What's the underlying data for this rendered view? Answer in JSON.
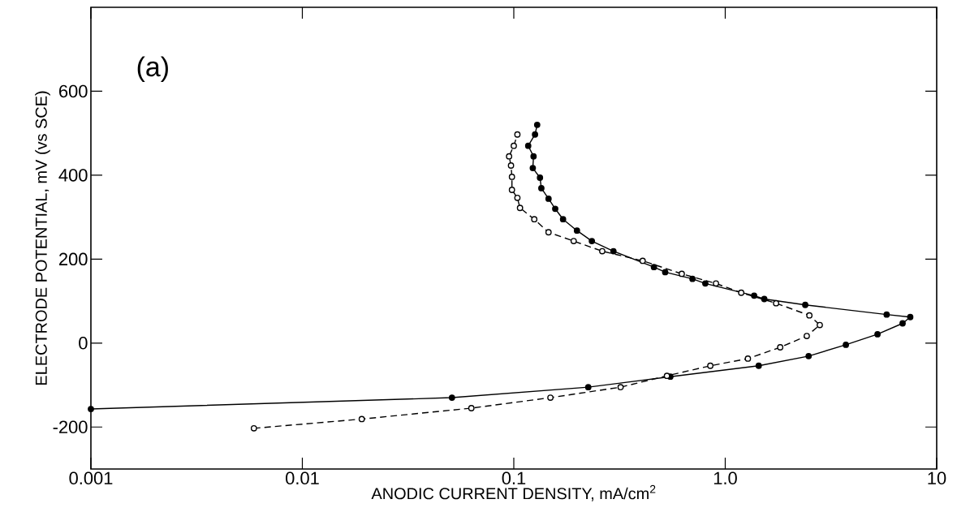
{
  "chart_data": {
    "type": "line",
    "xlabel": "ANODIC CURRENT DENSITY, mA/cm$^{2}$",
    "ylabel": "ELECTRODE POTENTIAL, mV (vs SCE)",
    "annotations": [
      "(a)"
    ],
    "log": "x",
    "xlim": [
      0.001,
      10
    ],
    "ylim": [
      -300,
      800
    ],
    "xticks": [
      0.001,
      0.01,
      0.1,
      {
        "value": 1,
        "label": "1.0"
      },
      10
    ],
    "yticks": [
      -200,
      0,
      200,
      400,
      600
    ],
    "grid": false,
    "marker": "circle",
    "series": [
      {
        "color": "#000000",
        "line_style": "solid",
        "x": [
          0.001,
          0.051,
          0.225,
          0.55,
          1.44,
          2.48,
          3.72,
          5.25,
          6.9,
          7.5,
          5.8,
          2.39,
          1.53,
          1.37,
          0.805,
          0.7,
          0.52,
          0.46,
          0.296,
          0.234,
          0.199,
          0.171,
          0.157,
          0.146,
          0.135,
          0.133,
          0.123,
          0.124,
          0.117,
          0.126,
          0.129
        ],
        "values": [
          -157,
          -130,
          -105,
          -80,
          -54,
          -31,
          -4,
          21,
          47,
          62,
          68,
          91,
          105,
          113,
          142,
          153,
          169,
          181,
          219,
          243,
          268,
          295,
          320,
          344,
          369,
          394,
          417,
          445,
          470,
          497,
          520
        ]
      },
      {
        "color": "#000000",
        "line_style": "dashed",
        "x": [
          0.0059,
          0.0191,
          0.063,
          0.149,
          0.32,
          0.53,
          0.85,
          1.28,
          1.82,
          2.43,
          2.8,
          2.5,
          1.74,
          1.19,
          0.904,
          0.623,
          0.407,
          0.262,
          0.192,
          0.146,
          0.125,
          0.107,
          0.104,
          0.098,
          0.098,
          0.097,
          0.095,
          0.1,
          0.104
        ],
        "values": [
          -203,
          -181,
          -155,
          -130,
          -105,
          -78,
          -54,
          -37,
          -10,
          17,
          43,
          66,
          95,
          120,
          142,
          165,
          196,
          219,
          243,
          264,
          295,
          322,
          346,
          365,
          396,
          423,
          445,
          470,
          497
        ]
      }
    ]
  }
}
